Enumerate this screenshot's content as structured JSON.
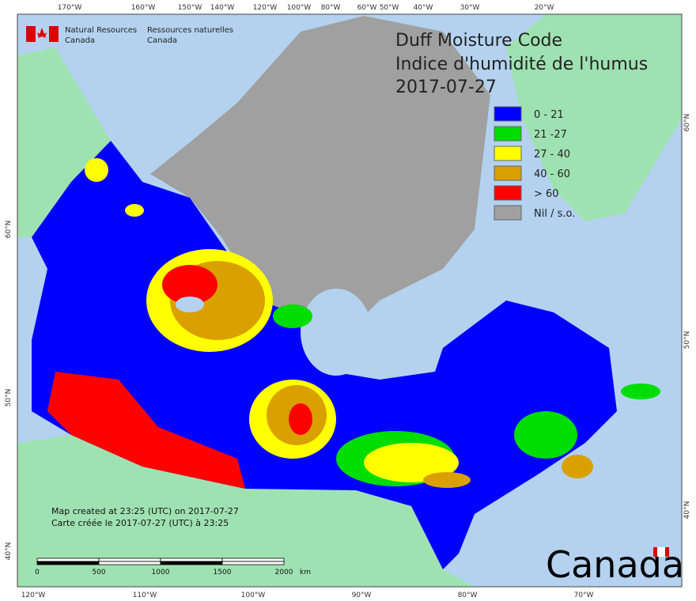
{
  "header": {
    "org_en": [
      "Natural Resources",
      "Canada"
    ],
    "org_fr": [
      "Ressources naturelles",
      "Canada"
    ]
  },
  "title": [
    "Duff Moisture Code",
    "Indice d'humidité de l'humus",
    "2017-07-27"
  ],
  "legend": [
    {
      "label": "0 - 21",
      "color": "#0000ff"
    },
    {
      "label": "21 -27",
      "color": "#00dd00"
    },
    {
      "label": "27 - 40",
      "color": "#ffff00"
    },
    {
      "label": "40 - 60",
      "color": "#daa000"
    },
    {
      "label": "> 60",
      "color": "#ff0000"
    },
    {
      "label": "Nil / s.o.",
      "color": "#a0a0a0"
    }
  ],
  "top_axis": [
    "170°W",
    "160°W",
    "150°W",
    "140°W",
    "120°W",
    "100°W",
    "80°W",
    "60°W",
    "50°W",
    "40°W",
    "30°W",
    "20°W"
  ],
  "bottom_axis": [
    "120°W",
    "110°W",
    "100°W",
    "90°W",
    "80°W",
    "70°W"
  ],
  "left_axis": [
    "60°N",
    "50°N",
    "40°N"
  ],
  "right_axis": [
    "60°N",
    "50°N",
    "40°N"
  ],
  "scale_bar": {
    "labels": [
      "0",
      "500",
      "1000",
      "1500",
      "2000"
    ],
    "unit": "km"
  },
  "notes": [
    "Map created at 23:25 (UTC) on 2017-07-27",
    "Carte créée le 2017-07-27 (UTC) à 23:25"
  ],
  "wordmark": "Canada"
}
